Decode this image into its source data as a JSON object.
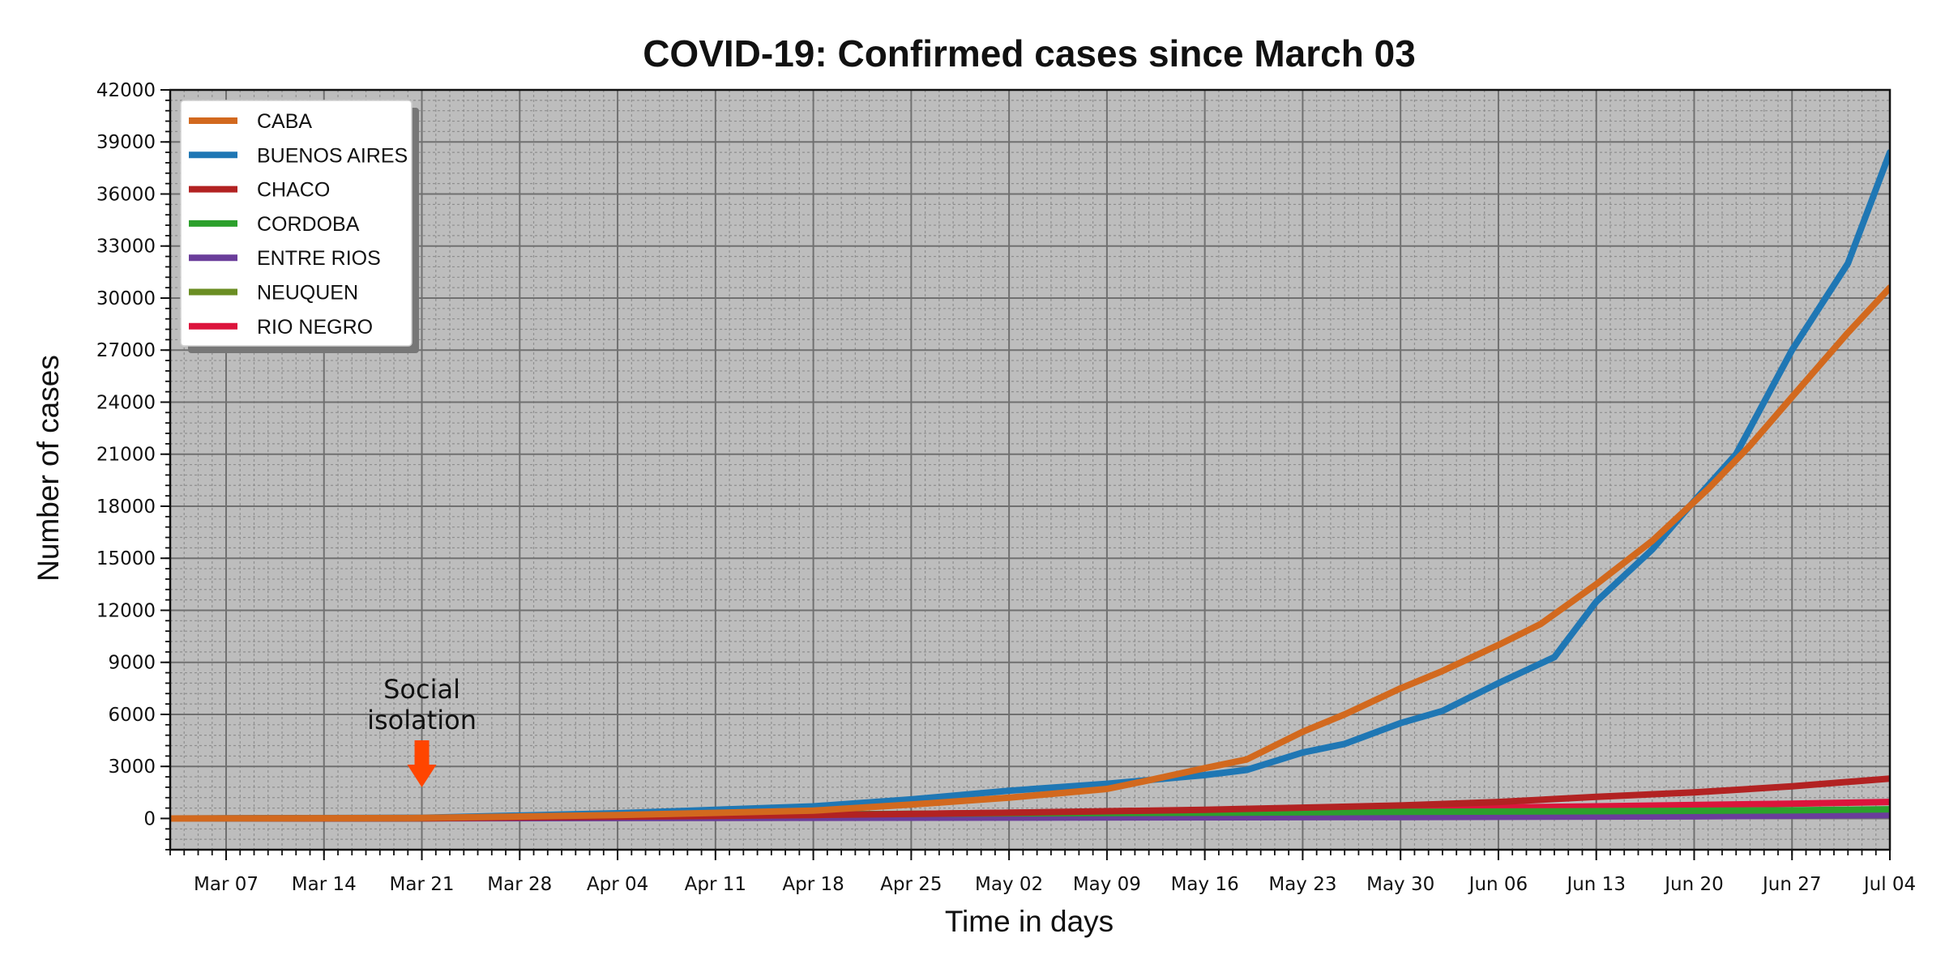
{
  "chart_data": {
    "type": "line",
    "title": "COVID-19: Confirmed cases since March 03",
    "xlabel": "Time in days",
    "ylabel": "Number of cases",
    "x_start": "2020-03-03",
    "x_end": "2020-07-04",
    "x_ticks": [
      "Mar 07",
      "Mar 14",
      "Mar 21",
      "Mar 28",
      "Apr 04",
      "Apr 11",
      "Apr 18",
      "Apr 25",
      "May 02",
      "May 09",
      "May 16",
      "May 23",
      "May 30",
      "Jun 06",
      "Jun 13",
      "Jun 20",
      "Jun 27",
      "Jul 04"
    ],
    "x_tick_dates": [
      "2020-03-07",
      "2020-03-14",
      "2020-03-21",
      "2020-03-28",
      "2020-04-04",
      "2020-04-11",
      "2020-04-18",
      "2020-04-25",
      "2020-05-02",
      "2020-05-09",
      "2020-05-16",
      "2020-05-23",
      "2020-05-30",
      "2020-06-06",
      "2020-06-13",
      "2020-06-20",
      "2020-06-27",
      "2020-07-04"
    ],
    "ylim": [
      -1800,
      42000
    ],
    "y_ticks": [
      0,
      3000,
      6000,
      9000,
      12000,
      15000,
      18000,
      21000,
      24000,
      27000,
      30000,
      33000,
      36000,
      39000,
      42000
    ],
    "grid": true,
    "background": "#bdbdbd",
    "legend_position": "top-left",
    "series": [
      {
        "name": "CABA",
        "color": "#d2691e",
        "points": [
          [
            "2020-03-03",
            0
          ],
          [
            "2020-03-21",
            30
          ],
          [
            "2020-04-04",
            200
          ],
          [
            "2020-04-18",
            450
          ],
          [
            "2020-04-25",
            800
          ],
          [
            "2020-05-02",
            1200
          ],
          [
            "2020-05-09",
            1700
          ],
          [
            "2020-05-12",
            2200
          ],
          [
            "2020-05-16",
            2900
          ],
          [
            "2020-05-19",
            3400
          ],
          [
            "2020-05-23",
            5000
          ],
          [
            "2020-05-26",
            6000
          ],
          [
            "2020-05-30",
            7500
          ],
          [
            "2020-06-02",
            8500
          ],
          [
            "2020-06-06",
            10000
          ],
          [
            "2020-06-09",
            11200
          ],
          [
            "2020-06-13",
            13500
          ],
          [
            "2020-06-17",
            16000
          ],
          [
            "2020-06-21",
            19000
          ],
          [
            "2020-06-24",
            21500
          ],
          [
            "2020-06-27",
            24300
          ],
          [
            "2020-07-01",
            28000
          ],
          [
            "2020-07-04",
            30600
          ]
        ]
      },
      {
        "name": "BUENOS AIRES",
        "color": "#1f77b4",
        "points": [
          [
            "2020-03-03",
            0
          ],
          [
            "2020-03-21",
            40
          ],
          [
            "2020-04-04",
            300
          ],
          [
            "2020-04-11",
            500
          ],
          [
            "2020-04-18",
            700
          ],
          [
            "2020-04-25",
            1100
          ],
          [
            "2020-05-02",
            1600
          ],
          [
            "2020-05-09",
            2000
          ],
          [
            "2020-05-16",
            2500
          ],
          [
            "2020-05-19",
            2800
          ],
          [
            "2020-05-23",
            3800
          ],
          [
            "2020-05-26",
            4300
          ],
          [
            "2020-05-30",
            5500
          ],
          [
            "2020-06-02",
            6200
          ],
          [
            "2020-06-06",
            7800
          ],
          [
            "2020-06-10",
            9300
          ],
          [
            "2020-06-13",
            12500
          ],
          [
            "2020-06-17",
            15500
          ],
          [
            "2020-06-20",
            18300
          ],
          [
            "2020-06-23",
            21000
          ],
          [
            "2020-06-27",
            27000
          ],
          [
            "2020-07-01",
            32000
          ],
          [
            "2020-07-04",
            38400
          ]
        ]
      },
      {
        "name": "CHACO",
        "color": "#b22222",
        "points": [
          [
            "2020-03-03",
            0
          ],
          [
            "2020-03-21",
            10
          ],
          [
            "2020-04-04",
            100
          ],
          [
            "2020-04-18",
            200
          ],
          [
            "2020-05-02",
            330
          ],
          [
            "2020-05-16",
            500
          ],
          [
            "2020-05-30",
            750
          ],
          [
            "2020-06-06",
            950
          ],
          [
            "2020-06-13",
            1250
          ],
          [
            "2020-06-20",
            1500
          ],
          [
            "2020-06-27",
            1850
          ],
          [
            "2020-07-04",
            2300
          ]
        ]
      },
      {
        "name": "CORDOBA",
        "color": "#2ca02c",
        "points": [
          [
            "2020-03-03",
            0
          ],
          [
            "2020-03-21",
            15
          ],
          [
            "2020-04-04",
            150
          ],
          [
            "2020-04-18",
            230
          ],
          [
            "2020-05-02",
            300
          ],
          [
            "2020-05-16",
            330
          ],
          [
            "2020-05-30",
            380
          ],
          [
            "2020-06-13",
            420
          ],
          [
            "2020-06-27",
            470
          ],
          [
            "2020-07-04",
            530
          ]
        ]
      },
      {
        "name": "ENTRE RIOS",
        "color": "#6a3d9a",
        "points": [
          [
            "2020-03-03",
            0
          ],
          [
            "2020-03-21",
            5
          ],
          [
            "2020-04-04",
            25
          ],
          [
            "2020-05-02",
            50
          ],
          [
            "2020-05-30",
            80
          ],
          [
            "2020-06-20",
            120
          ],
          [
            "2020-07-04",
            200
          ]
        ]
      },
      {
        "name": "NEUQUEN",
        "color": "#6b8e23",
        "points": [
          [
            "2020-03-03",
            0
          ],
          [
            "2020-03-21",
            5
          ],
          [
            "2020-04-04",
            60
          ],
          [
            "2020-05-02",
            150
          ],
          [
            "2020-05-30",
            230
          ],
          [
            "2020-06-13",
            300
          ],
          [
            "2020-06-27",
            380
          ],
          [
            "2020-07-04",
            430
          ]
        ]
      },
      {
        "name": "RIO NEGRO",
        "color": "#dc143c",
        "points": [
          [
            "2020-03-03",
            0
          ],
          [
            "2020-03-21",
            5
          ],
          [
            "2020-04-04",
            100
          ],
          [
            "2020-04-18",
            200
          ],
          [
            "2020-05-02",
            330
          ],
          [
            "2020-05-16",
            450
          ],
          [
            "2020-05-30",
            560
          ],
          [
            "2020-06-13",
            700
          ],
          [
            "2020-06-27",
            850
          ],
          [
            "2020-07-04",
            950
          ]
        ]
      }
    ],
    "annotations": [
      {
        "text_lines": [
          "Social",
          "isolation"
        ],
        "date": "2020-03-21",
        "arrow_color": "#ff4500"
      }
    ]
  }
}
